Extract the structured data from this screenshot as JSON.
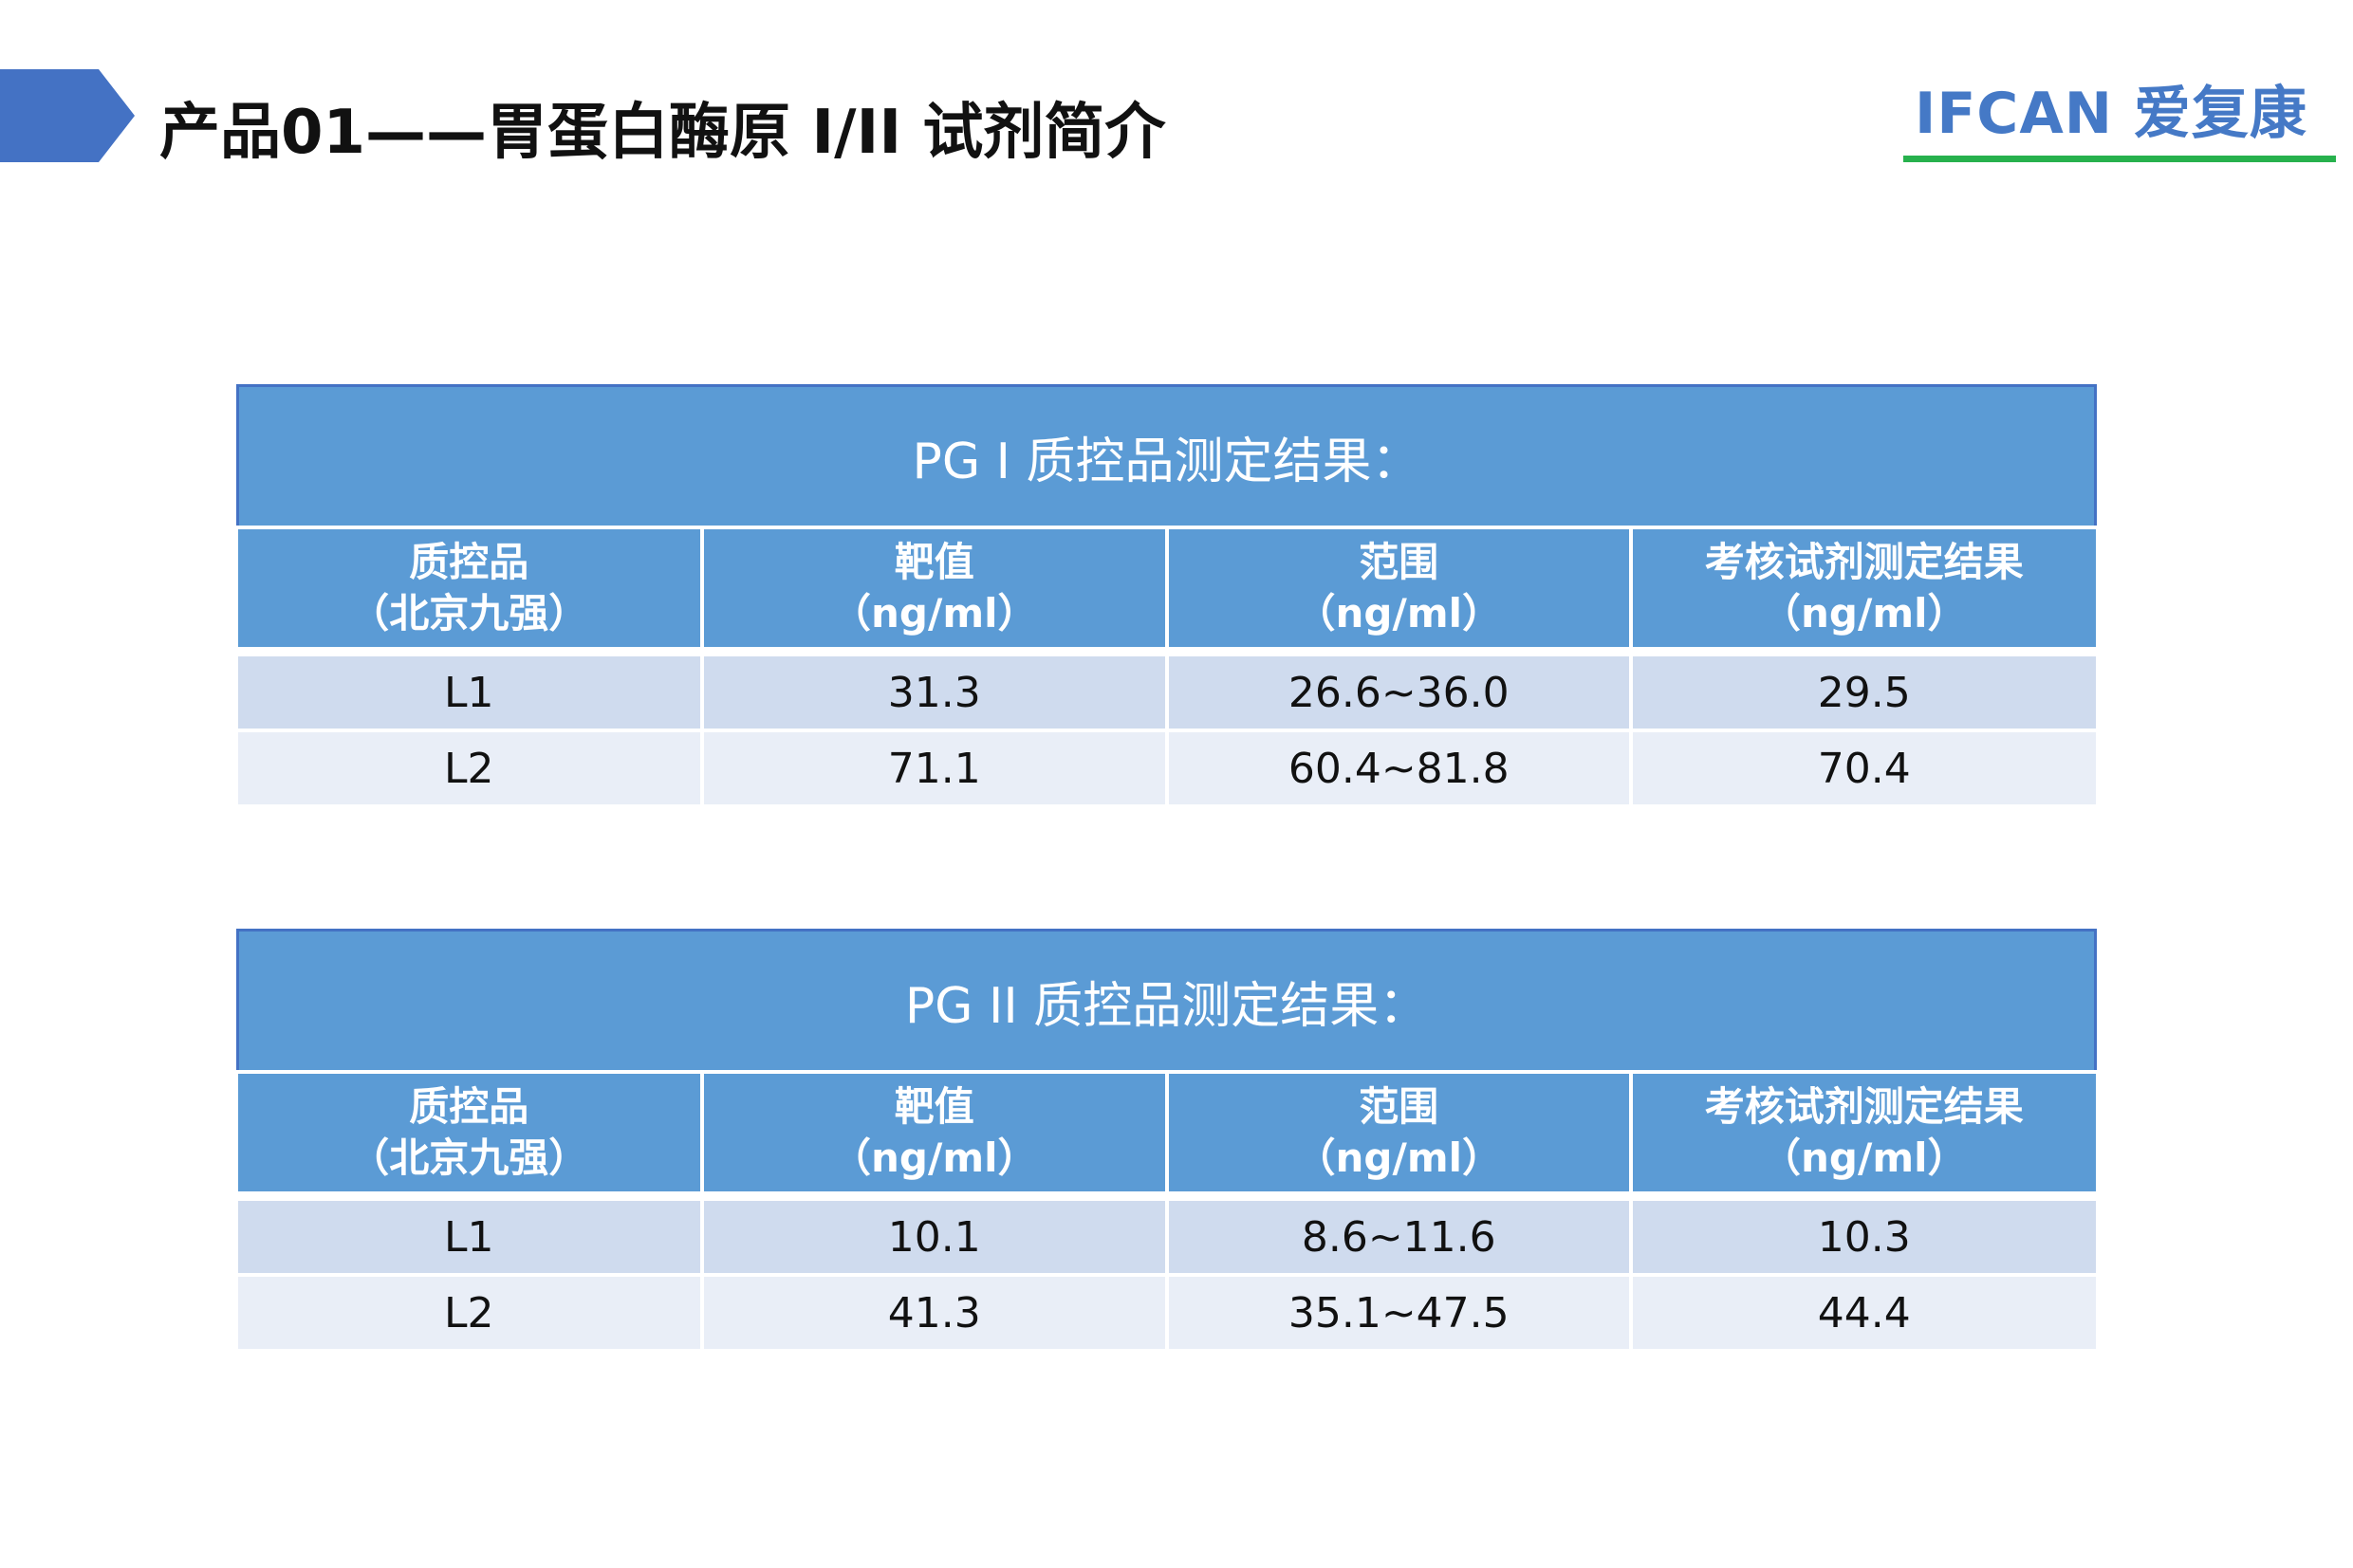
{
  "header": {
    "title": "产品01——胃蛋白酶原 I/II 试剂简介",
    "logo_text": "IFCAN 爱复康"
  },
  "colors": {
    "accent_arrow": "#4472c4",
    "table_header": "#5b9bd5",
    "row_odd": "#cfdbee",
    "row_even": "#e9eef7",
    "logo_text": "#4579c6",
    "logo_underline": "#27b14d"
  },
  "tables": [
    {
      "caption": "PG I 质控品测定结果：",
      "columns": [
        {
          "name": "质控品",
          "unit": "（北京九强）"
        },
        {
          "name": "靶值",
          "unit": "（ng/ml）"
        },
        {
          "name": "范围",
          "unit": "（ng/ml）"
        },
        {
          "name": "考核试剂测定结果",
          "unit": "（ng/ml）"
        }
      ],
      "rows": [
        [
          "L1",
          "31.3",
          "26.6~36.0",
          "29.5"
        ],
        [
          "L2",
          "71.1",
          "60.4~81.8",
          "70.4"
        ]
      ]
    },
    {
      "caption": "PG II 质控品测定结果：",
      "columns": [
        {
          "name": "质控品",
          "unit": "（北京九强）"
        },
        {
          "name": "靶值",
          "unit": "（ng/ml）"
        },
        {
          "name": "范围",
          "unit": "（ng/ml）"
        },
        {
          "name": "考核试剂测定结果",
          "unit": "（ng/ml）"
        }
      ],
      "rows": [
        [
          "L1",
          "10.1",
          "8.6~11.6",
          "10.3"
        ],
        [
          "L2",
          "41.3",
          "35.1~47.5",
          "44.4"
        ]
      ]
    }
  ]
}
